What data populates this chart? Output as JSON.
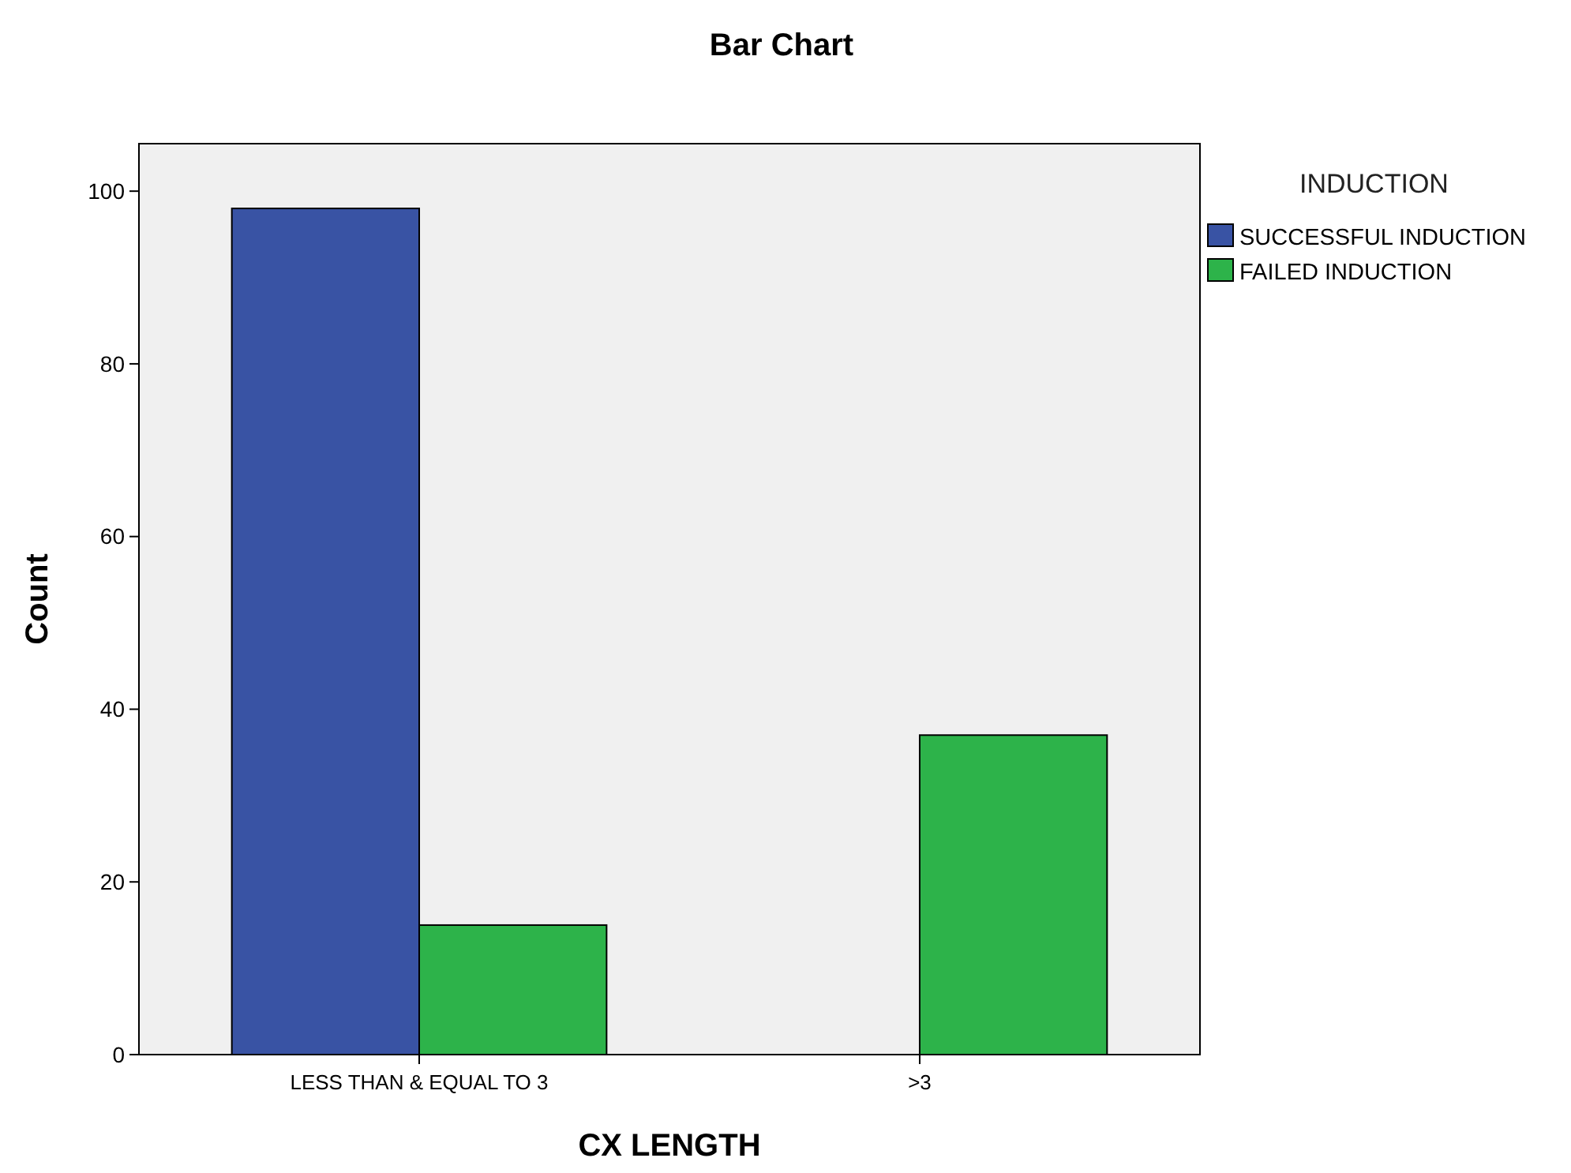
{
  "chart_data": {
    "type": "bar",
    "title": "Bar Chart",
    "xlabel": "CX LENGTH",
    "ylabel": "Count",
    "legend_title": "INDUCTION",
    "categories": [
      "LESS THAN & EQUAL TO 3",
      ">3"
    ],
    "series": [
      {
        "name": "SUCCESSFUL INDUCTION",
        "color": "#3953a4",
        "values": [
          98,
          0
        ]
      },
      {
        "name": "FAILED  INDUCTION",
        "color": "#2db34a",
        "values": [
          15,
          37
        ]
      }
    ],
    "ylim": [
      0,
      105.5
    ],
    "yticks": [
      0,
      20,
      40,
      60,
      80,
      100
    ],
    "grid": false,
    "legend": "right"
  }
}
